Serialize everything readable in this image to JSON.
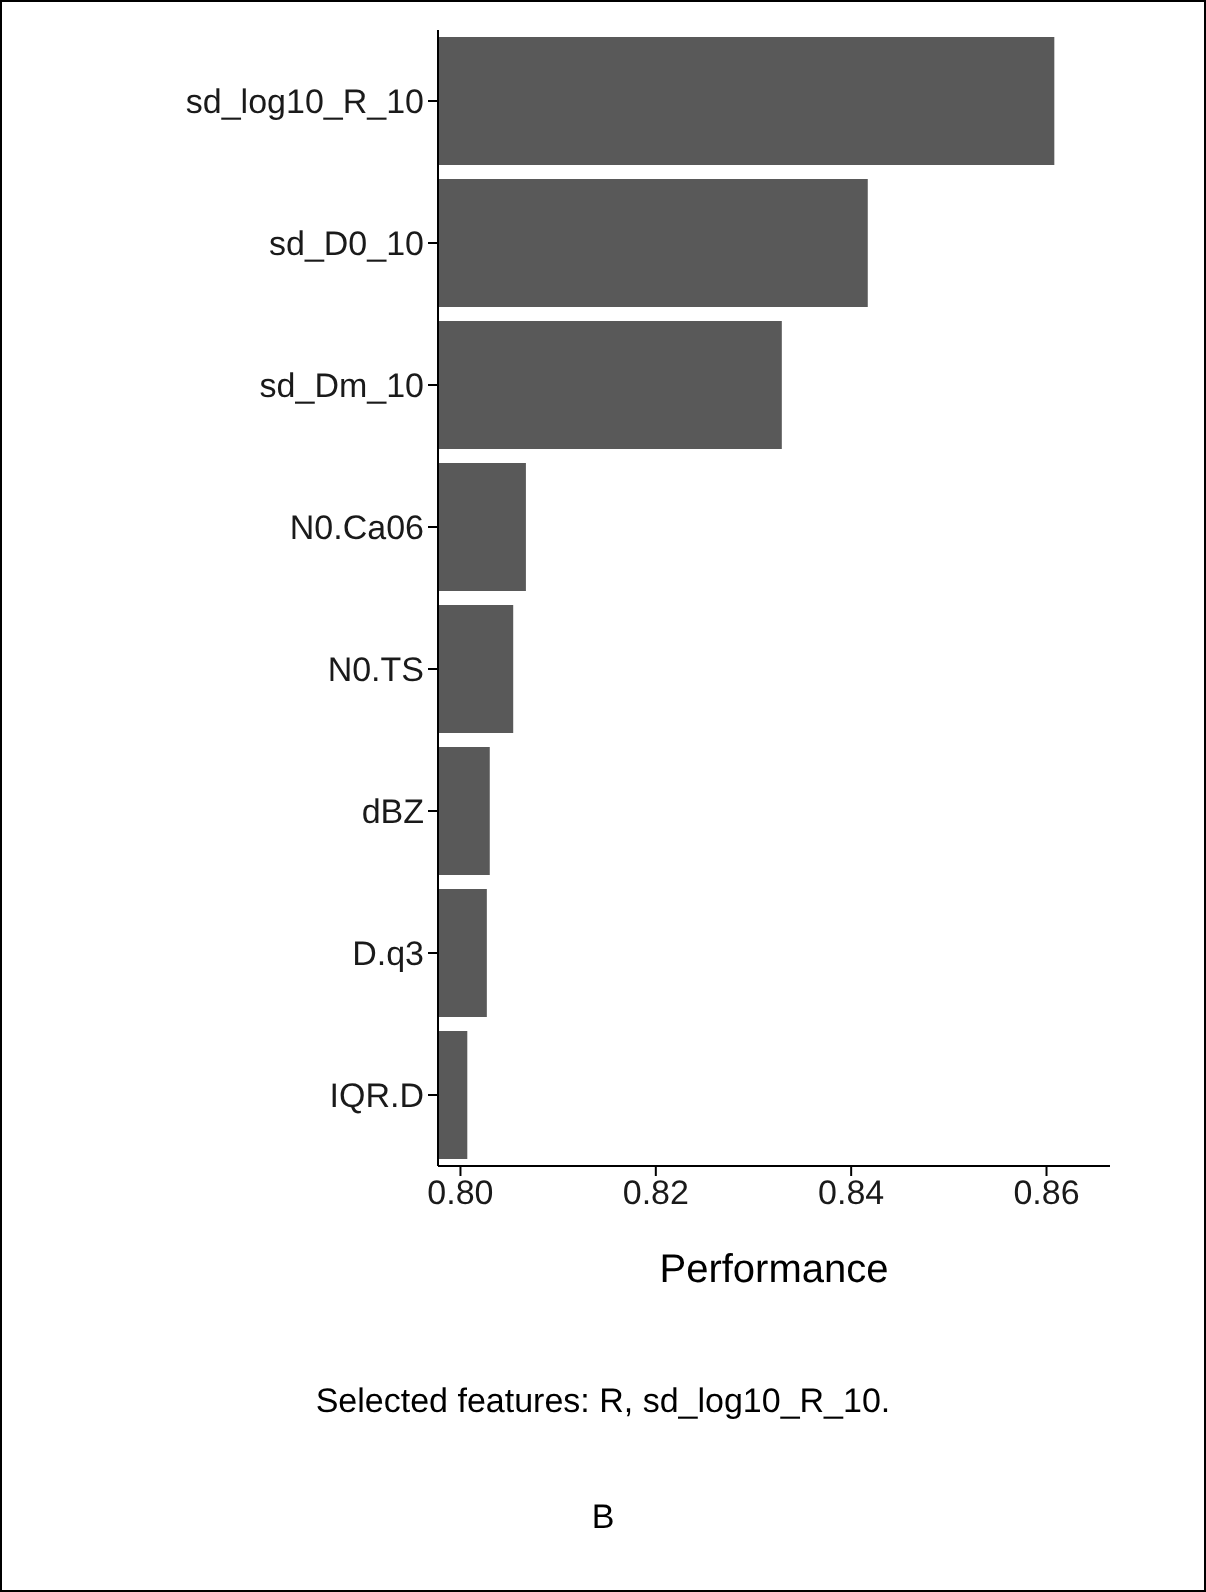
{
  "chart_data": {
    "type": "bar",
    "orientation": "horizontal",
    "categories": [
      "sd_log10_R_10",
      "sd_D0_10",
      "sd_Dm_10",
      "N0.Ca06",
      "N0.TS",
      "dBZ",
      "D.q3",
      "IQR.D"
    ],
    "values": [
      0.8608,
      0.8417,
      0.8329,
      0.8067,
      0.8054,
      0.803,
      0.8027,
      0.8007
    ],
    "color": "#595959",
    "xlabel": "Performance",
    "xlim": [
      0.7977,
      0.8665
    ],
    "xticks": [
      {
        "value": 0.8,
        "label": "0.80"
      },
      {
        "value": 0.82,
        "label": "0.82"
      },
      {
        "value": 0.84,
        "label": "0.84"
      },
      {
        "value": 0.86,
        "label": "0.86"
      }
    ],
    "grid": false,
    "legend": false,
    "annotations": [
      "Selected features: R, sd_log10_R_10.",
      "B"
    ]
  }
}
